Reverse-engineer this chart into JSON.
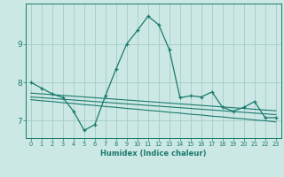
{
  "xlabel": "Humidex (Indice chaleur)",
  "ylabel": "",
  "background_color": "#cce8e4",
  "grid_color": "#aacfcb",
  "line_color": "#1a7a6e",
  "xlim": [
    -0.5,
    23.5
  ],
  "ylim": [
    6.55,
    10.05
  ],
  "yticks": [
    7,
    8,
    9
  ],
  "xticks": [
    0,
    1,
    2,
    3,
    4,
    5,
    6,
    7,
    8,
    9,
    10,
    11,
    12,
    13,
    14,
    15,
    16,
    17,
    18,
    19,
    20,
    21,
    22,
    23
  ],
  "line1_x": [
    0,
    1,
    2,
    3,
    4,
    5,
    6,
    7,
    8,
    9,
    10,
    11,
    12,
    13,
    14,
    15,
    16,
    17,
    18,
    19,
    20,
    21,
    22,
    23
  ],
  "line1_y": [
    8.0,
    7.85,
    7.7,
    7.6,
    7.25,
    6.75,
    6.9,
    7.65,
    8.35,
    9.0,
    9.35,
    9.72,
    9.5,
    8.85,
    7.6,
    7.65,
    7.62,
    7.75,
    7.35,
    7.25,
    7.35,
    7.5,
    7.08,
    7.08
  ],
  "line2_x": [
    0,
    1,
    2,
    3,
    4,
    5,
    6,
    7,
    8,
    9,
    10,
    11,
    12,
    13,
    14,
    15,
    16,
    17,
    18,
    19,
    20,
    21,
    22,
    23
  ],
  "line2_y": [
    7.72,
    7.7,
    7.68,
    7.66,
    7.64,
    7.62,
    7.6,
    7.58,
    7.56,
    7.54,
    7.52,
    7.5,
    7.48,
    7.46,
    7.44,
    7.42,
    7.4,
    7.38,
    7.36,
    7.34,
    7.32,
    7.3,
    7.28,
    7.26
  ],
  "line3_x": [
    0,
    1,
    2,
    3,
    4,
    5,
    6,
    7,
    8,
    9,
    10,
    11,
    12,
    13,
    14,
    15,
    16,
    17,
    18,
    19,
    20,
    21,
    22,
    23
  ],
  "line3_y": [
    7.62,
    7.6,
    7.58,
    7.56,
    7.54,
    7.52,
    7.5,
    7.48,
    7.46,
    7.44,
    7.42,
    7.4,
    7.38,
    7.36,
    7.34,
    7.32,
    7.3,
    7.28,
    7.26,
    7.24,
    7.22,
    7.2,
    7.18,
    7.16
  ],
  "line4_x": [
    0,
    1,
    2,
    3,
    4,
    5,
    6,
    7,
    8,
    9,
    10,
    11,
    12,
    13,
    14,
    15,
    16,
    17,
    18,
    19,
    20,
    21,
    22,
    23
  ],
  "line4_y": [
    7.55,
    7.52,
    7.5,
    7.47,
    7.45,
    7.42,
    7.4,
    7.37,
    7.35,
    7.32,
    7.3,
    7.27,
    7.25,
    7.22,
    7.2,
    7.17,
    7.15,
    7.12,
    7.1,
    7.07,
    7.05,
    7.02,
    7.0,
    6.97
  ]
}
